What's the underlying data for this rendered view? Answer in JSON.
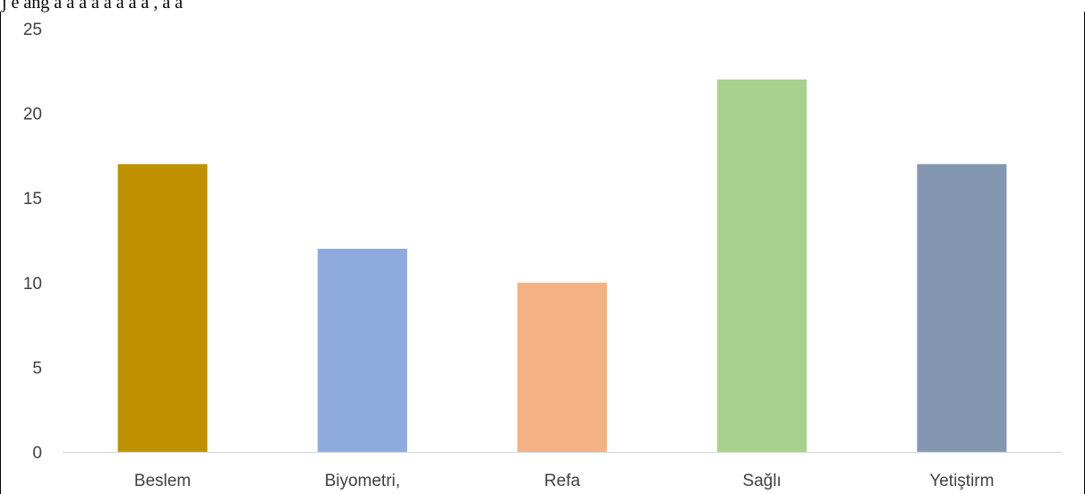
{
  "caption_fragment": "j    e   ang     a  a    a   a   a   a     a   a   ,   a   a",
  "chart_data": {
    "type": "bar",
    "title": "",
    "xlabel": "",
    "ylabel": "",
    "categories": [
      "Beslem",
      "Biyometri,",
      "Refa",
      "Sağlı",
      "Yetiştirm"
    ],
    "values": [
      17,
      12,
      10,
      22,
      17
    ],
    "colors": [
      "#bf9000",
      "#8faadc",
      "#f4b183",
      "#a9d18e",
      "#8497b0"
    ],
    "ylim": [
      0,
      25
    ],
    "yticks": [
      0,
      5,
      10,
      15,
      20,
      25
    ],
    "grid": false,
    "legend": "none"
  }
}
